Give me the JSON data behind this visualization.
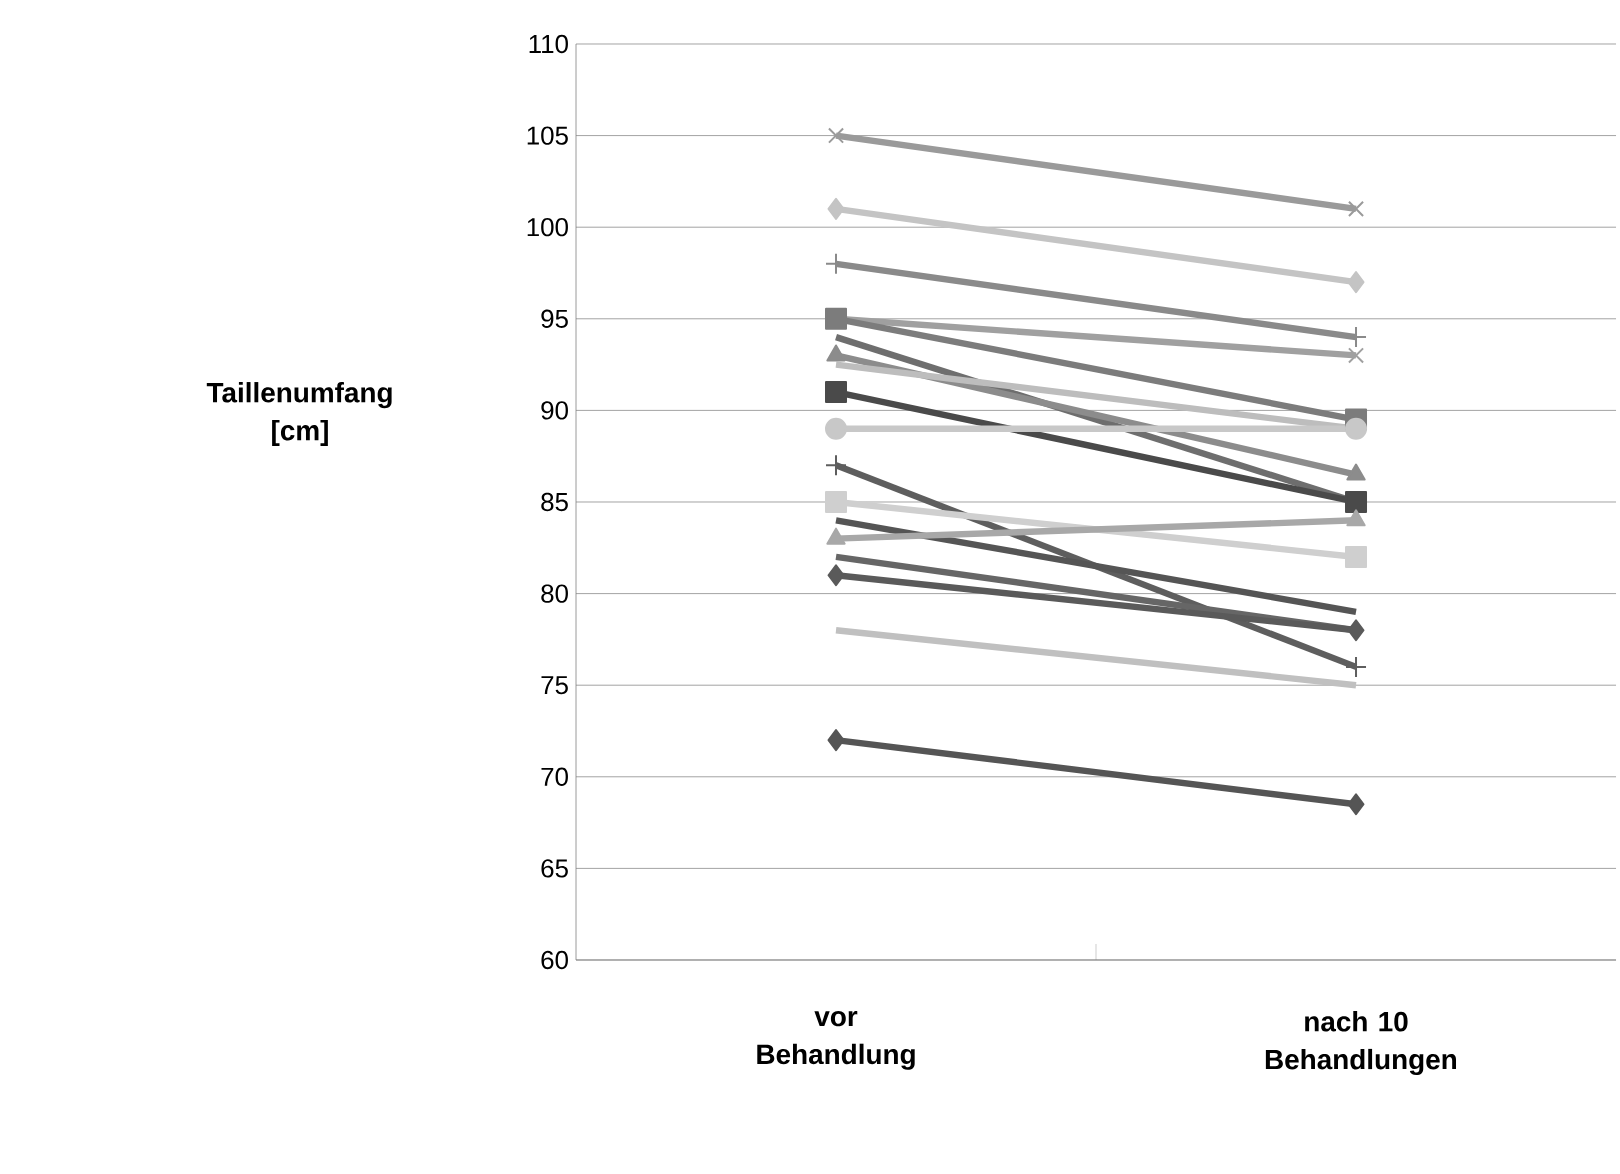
{
  "chart_data": {
    "type": "line",
    "ylabel": "Taillenumfang [cm]",
    "categories": [
      "vor Behandlung",
      "nach 10 Behandlungen"
    ],
    "ylim": [
      60,
      110
    ],
    "yticks": [
      60,
      65,
      70,
      75,
      80,
      85,
      90,
      95,
      100,
      105,
      110
    ],
    "grid": "y",
    "series": [
      {
        "color": "#9a9a9a",
        "marker": "cross",
        "values": [
          105,
          101
        ]
      },
      {
        "color": "#c4c4c4",
        "marker": "diamond",
        "values": [
          101,
          97
        ]
      },
      {
        "color": "#8a8a8a",
        "marker": "plus",
        "values": [
          98,
          94
        ]
      },
      {
        "color": "#a0a0a0",
        "marker": "cross",
        "values": [
          95,
          93
        ]
      },
      {
        "color": "#7c7c7c",
        "marker": "square",
        "values": [
          95,
          89.5
        ]
      },
      {
        "color": "#6e6e6e",
        "marker": "none",
        "values": [
          94,
          85
        ]
      },
      {
        "color": "#8c8c8c",
        "marker": "triangle",
        "values": [
          93,
          86.5
        ]
      },
      {
        "color": "#bdbdbd",
        "values": [
          92.5,
          89
        ]
      },
      {
        "color": "#4a4a4a",
        "marker": "square",
        "values": [
          91,
          85
        ]
      },
      {
        "color": "#c8c8c8",
        "marker": "circle",
        "values": [
          89,
          89
        ]
      },
      {
        "color": "#5e5e5e",
        "marker": "plus",
        "values": [
          87,
          76
        ]
      },
      {
        "color": "#cfcfcf",
        "marker": "square",
        "values": [
          85,
          82
        ]
      },
      {
        "color": "#555555",
        "marker": "none",
        "values": [
          84,
          79
        ]
      },
      {
        "color": "#a8a8a8",
        "marker": "triangle",
        "values": [
          83,
          84
        ]
      },
      {
        "color": "#666666",
        "values": [
          82,
          78
        ]
      },
      {
        "color": "#5a5a5a",
        "marker": "diamond",
        "values": [
          81,
          78
        ]
      },
      {
        "color": "#c0c0c0",
        "marker": "none",
        "values": [
          78,
          75
        ]
      },
      {
        "color": "#555555",
        "marker": "diamond",
        "values": [
          72,
          68.5
        ]
      }
    ]
  }
}
